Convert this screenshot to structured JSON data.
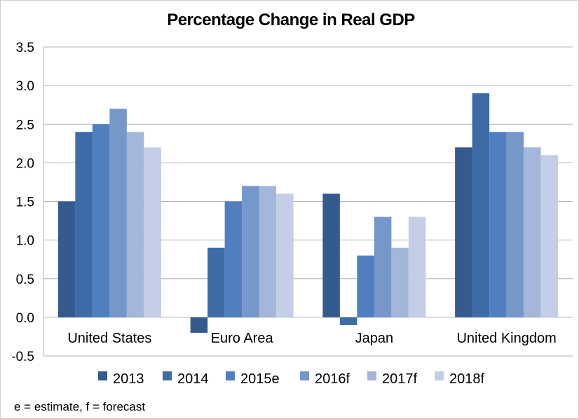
{
  "chart_data": {
    "type": "bar",
    "title": "Percentage Change in Real GDP",
    "xlabel": "",
    "ylabel": "",
    "categories": [
      "United States",
      "Euro Area",
      "Japan",
      "United Kingdom"
    ],
    "series": [
      {
        "name": "2013",
        "values": [
          1.5,
          -0.2,
          1.6,
          2.2
        ],
        "color": "#355a8e"
      },
      {
        "name": "2014",
        "values": [
          2.4,
          0.9,
          -0.1,
          2.9
        ],
        "color": "#3e6aa6"
      },
      {
        "name": "2015e",
        "values": [
          2.5,
          1.5,
          0.8,
          2.4
        ],
        "color": "#4f7fbf"
      },
      {
        "name": "2016f",
        "values": [
          2.7,
          1.7,
          1.3,
          2.4
        ],
        "color": "#7697c9"
      },
      {
        "name": "2017f",
        "values": [
          2.4,
          1.7,
          0.9,
          2.2
        ],
        "color": "#a4b6d9"
      },
      {
        "name": "2018f",
        "values": [
          2.2,
          1.6,
          1.3,
          2.1
        ],
        "color": "#c4cee6"
      }
    ],
    "ylim": [
      -0.5,
      3.5
    ],
    "yticks": [
      "3.5",
      "3.0",
      "2.5",
      "2.0",
      "1.5",
      "1.0",
      "0.5",
      "0.0",
      "-0.5"
    ],
    "grid": true,
    "legend_position": "bottom",
    "footnote": "e = estimate, f = forecast"
  }
}
